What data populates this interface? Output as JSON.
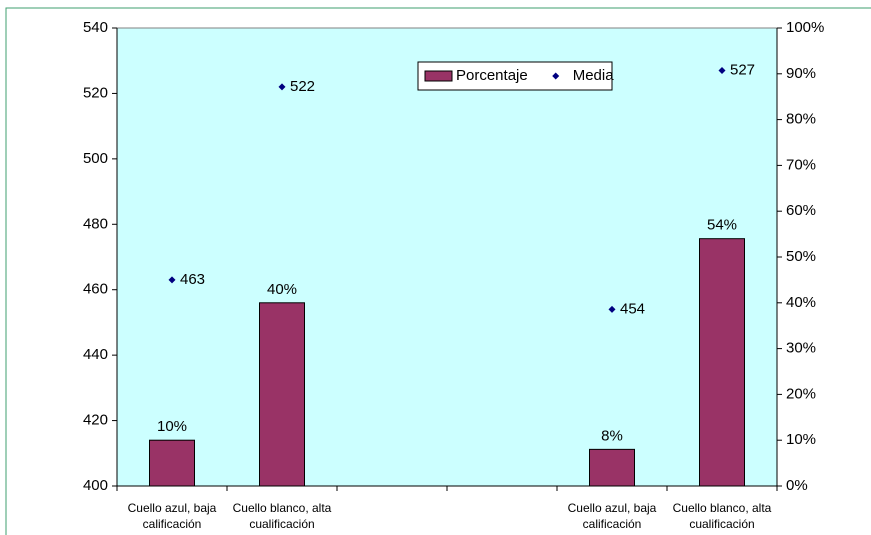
{
  "chart_data": {
    "type": "bar-dot",
    "categories": [
      "Cuello azul, baja calificación",
      "Cuello blanco, alta cualificación",
      null,
      null,
      "Cuello azul, baja calificación",
      "Cuello blanco, alta cualificación"
    ],
    "series": [
      {
        "name": "Porcentaje",
        "color": "#993366",
        "axis": "y2",
        "values": [
          10,
          40,
          null,
          null,
          8,
          54
        ],
        "value_labels": [
          "10%",
          "40%",
          null,
          null,
          "8%",
          "54%"
        ]
      },
      {
        "name": "Media",
        "color": "#000080",
        "values": [
          463,
          522,
          null,
          null,
          454,
          527
        ]
      }
    ],
    "ylim": [
      400,
      540
    ],
    "yticks": [
      400,
      420,
      440,
      460,
      480,
      500,
      520,
      540
    ],
    "y2lim": [
      0,
      100
    ],
    "y2ticks": [
      {
        "value": 0,
        "label": "0%"
      },
      {
        "value": 10,
        "label": "10%"
      },
      {
        "value": 20,
        "label": "20%"
      },
      {
        "value": 30,
        "label": "30%"
      },
      {
        "value": 40,
        "label": "40%"
      },
      {
        "value": 50,
        "label": "50%"
      },
      {
        "value": 60,
        "label": "60%"
      },
      {
        "value": 70,
        "label": "70%"
      },
      {
        "value": 80,
        "label": "80%"
      },
      {
        "value": 90,
        "label": "90%"
      },
      {
        "value": 100,
        "label": "100%"
      }
    ],
    "plot_background": "#ccffff"
  }
}
